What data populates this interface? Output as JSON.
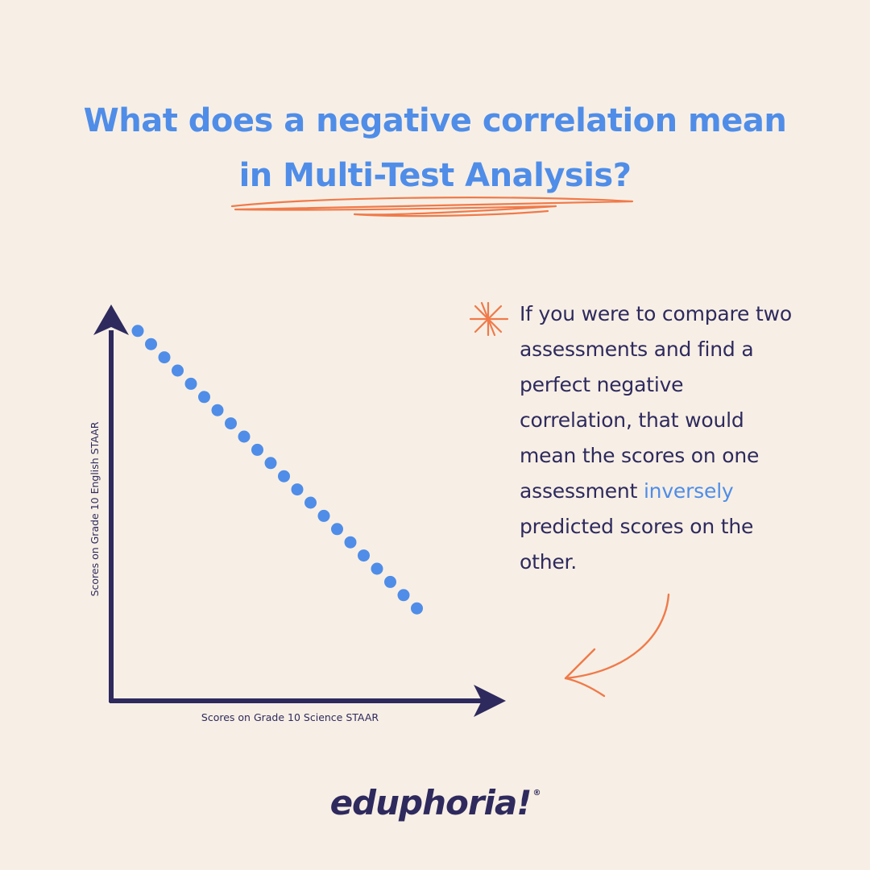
{
  "title": {
    "line1": "What does a negative correlation mean",
    "line2": "in Multi-Test Analysis?"
  },
  "callout": {
    "text_before": "If you were to compare two assessments and find a perfect negative correlation, that would mean the scores on one assessment ",
    "highlight": "inversely",
    "text_after": " predicted scores on the other."
  },
  "brand": {
    "name": "eduphoria!",
    "mark": "®"
  },
  "icons": {
    "callout": "asterisk-star-icon",
    "pointer": "curved-arrow-icon",
    "underline": "scribble-underline"
  },
  "colors": {
    "background": "#f7efe5",
    "title_blue": "#4f8de8",
    "navy": "#2e2a5e",
    "accent_orange": "#f07a4a",
    "point_blue": "#4f8de8"
  },
  "chart_data": {
    "type": "scatter",
    "title": "",
    "xlabel": "Scores on Grade 10 Science STAAR",
    "ylabel": "Scores on Grade 10 English STAAR",
    "grid": false,
    "x_tick_labels": false,
    "y_tick_labels": false,
    "xlim": [
      0,
      30
    ],
    "ylim": [
      0,
      30
    ],
    "series": [
      {
        "points": [
          [
            2,
            28
          ],
          [
            3,
            27
          ],
          [
            4,
            26
          ],
          [
            5,
            25
          ],
          [
            6,
            24
          ],
          [
            7,
            23
          ],
          [
            8,
            22
          ],
          [
            9,
            21
          ],
          [
            10,
            20
          ],
          [
            11,
            19
          ],
          [
            12,
            18
          ],
          [
            13,
            17
          ],
          [
            14,
            16
          ],
          [
            15,
            15
          ],
          [
            16,
            14
          ],
          [
            17,
            13
          ],
          [
            18,
            12
          ],
          [
            19,
            11
          ],
          [
            20,
            10
          ],
          [
            21,
            9
          ],
          [
            22,
            8
          ],
          [
            23,
            7
          ]
        ]
      }
    ]
  }
}
